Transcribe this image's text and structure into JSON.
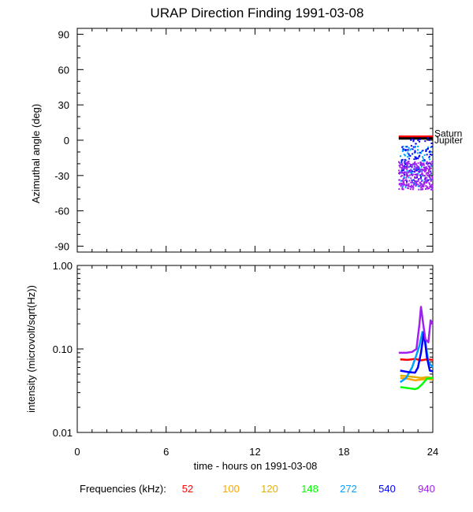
{
  "title": "URAP Direction Finding  1991-03-08",
  "chart_data": [
    {
      "type": "scatter",
      "panel": "azimuth",
      "ylabel": "Azimuthal angle (deg)",
      "xlim": [
        0,
        24
      ],
      "ylim": [
        -95,
        95
      ],
      "yticks": [
        "90",
        "60",
        "30",
        "0",
        "-30",
        "-60",
        "-90"
      ],
      "reference_lines": [
        {
          "name": "Saturn",
          "y": 3.0,
          "x": [
            21.7,
            24
          ],
          "color": "#ff0000"
        },
        {
          "name": "Jupiter",
          "y": 1.5,
          "x": [
            21.7,
            24
          ],
          "color": "#000000"
        }
      ],
      "series": [
        {
          "freq": "272",
          "color": "#00a0ff",
          "x_range": [
            21.8,
            24
          ],
          "y_range": [
            -40,
            -5
          ]
        },
        {
          "freq": "540",
          "color": "#0000ff",
          "x_range": [
            21.9,
            24
          ],
          "y_range": [
            -35,
            2
          ]
        },
        {
          "freq": "940",
          "color": "#a020f0",
          "x_range": [
            21.7,
            24
          ],
          "y_range": [
            -42,
            -18
          ]
        }
      ]
    },
    {
      "type": "line",
      "panel": "intensity",
      "ylabel": "intensity (microvolt/sqrt(Hz))",
      "xlabel": "time - hours on 1991-03-08",
      "xlim": [
        0,
        24
      ],
      "ylim": [
        0.01,
        1.0
      ],
      "yscale": "log",
      "yticks": [
        "1.00",
        "0.10",
        "0.01"
      ],
      "xticks": [
        "0",
        "6",
        "12",
        "18",
        "24"
      ],
      "series": [
        {
          "freq": "52",
          "color": "#ff0000",
          "x": [
            21.8,
            22.3,
            22.8,
            23.2,
            23.6,
            24.0
          ],
          "y": [
            0.075,
            0.074,
            0.076,
            0.073,
            0.075,
            0.074
          ]
        },
        {
          "freq": "100",
          "color": "#ffa500",
          "x": [
            21.8,
            22.3,
            22.8,
            23.2,
            23.6,
            24.0
          ],
          "y": [
            0.045,
            0.044,
            0.042,
            0.043,
            0.044,
            0.043
          ]
        },
        {
          "freq": "120",
          "color": "#e0b000",
          "x": [
            21.8,
            22.3,
            22.8,
            23.2,
            23.6,
            24.0
          ],
          "y": [
            0.048,
            0.047,
            0.046,
            0.045,
            0.046,
            0.045
          ]
        },
        {
          "freq": "148",
          "color": "#00ff00",
          "x": [
            21.8,
            22.3,
            22.8,
            23.0,
            23.3,
            23.6,
            24.0
          ],
          "y": [
            0.035,
            0.034,
            0.033,
            0.034,
            0.038,
            0.044,
            0.045
          ]
        },
        {
          "freq": "272",
          "color": "#00a0ff",
          "x": [
            21.8,
            22.2,
            22.6,
            22.9,
            23.1,
            23.3,
            23.5,
            23.7,
            24.0
          ],
          "y": [
            0.04,
            0.045,
            0.06,
            0.085,
            0.11,
            0.16,
            0.12,
            0.07,
            0.06
          ]
        },
        {
          "freq": "540",
          "color": "#0000ff",
          "x": [
            21.8,
            22.3,
            22.8,
            23.0,
            23.2,
            23.4,
            23.6,
            23.8,
            24.0
          ],
          "y": [
            0.055,
            0.053,
            0.052,
            0.06,
            0.09,
            0.16,
            0.08,
            0.055,
            0.054
          ]
        },
        {
          "freq": "940",
          "color": "#a020f0",
          "x": [
            21.7,
            22.2,
            22.6,
            22.9,
            23.1,
            23.2,
            23.35,
            23.5,
            23.7,
            23.85,
            24.0
          ],
          "y": [
            0.09,
            0.09,
            0.092,
            0.1,
            0.2,
            0.32,
            0.2,
            0.13,
            0.12,
            0.22,
            0.2
          ]
        }
      ]
    }
  ],
  "legend": {
    "label": "Frequencies (kHz):",
    "items": [
      {
        "text": "52",
        "color": "#ff0000"
      },
      {
        "text": "100",
        "color": "#ffa500"
      },
      {
        "text": "120",
        "color": "#e0b000"
      },
      {
        "text": "148",
        "color": "#00ff00"
      },
      {
        "text": "272",
        "color": "#00a0ff"
      },
      {
        "text": "540",
        "color": "#0000ff"
      },
      {
        "text": "940",
        "color": "#a020f0"
      }
    ]
  }
}
